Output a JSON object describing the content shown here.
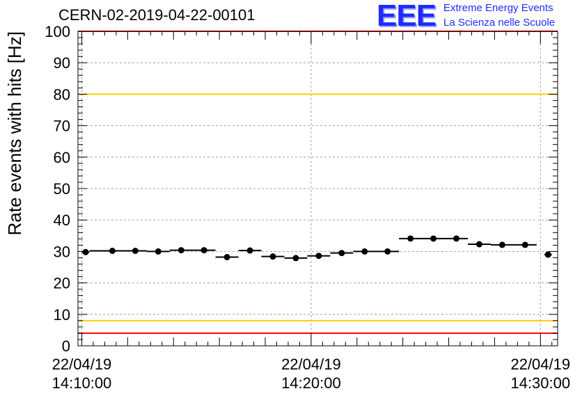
{
  "header": {
    "run_id": "CERN-02-2019-04-22-00101",
    "logo": {
      "mark": "EEE",
      "line1": "Extreme Energy Events",
      "line2": "La Scienza nelle Scuole"
    }
  },
  "chart_data": {
    "type": "scatter",
    "ylabel": "Rate events with hits [Hz]",
    "ylim": [
      0,
      100
    ],
    "yticks": [
      0,
      10,
      20,
      30,
      40,
      50,
      60,
      70,
      80,
      90,
      100
    ],
    "xlim": [
      "2019-04-22 14:09:50",
      "2019-04-22 14:30:45"
    ],
    "xticks": [
      {
        "time": "2019-04-22 14:10:00",
        "date_label": "22/04/19",
        "time_label": "14:10:00"
      },
      {
        "time": "2019-04-22 14:20:00",
        "date_label": "22/04/19",
        "time_label": "14:20:00"
      },
      {
        "time": "2019-04-22 14:30:00",
        "date_label": "22/04/19",
        "time_label": "14:30:00"
      }
    ],
    "grid": true,
    "reference_lines": [
      {
        "y": 100,
        "color": "#ff0000"
      },
      {
        "y": 80,
        "color": "#ffcc00"
      },
      {
        "y": 8,
        "color": "#ffcc00"
      },
      {
        "y": 4,
        "color": "#ff0000"
      }
    ],
    "marker_color": "#000000",
    "points": [
      {
        "x": "2019-04-22 14:10:10",
        "y": 29.8,
        "xerr_s": 10
      },
      {
        "x": "2019-04-22 14:11:20",
        "y": 30.2,
        "xerr_s": 60
      },
      {
        "x": "2019-04-22 14:12:20",
        "y": 30.2,
        "xerr_s": 30
      },
      {
        "x": "2019-04-22 14:13:20",
        "y": 30.0,
        "xerr_s": 30
      },
      {
        "x": "2019-04-22 14:14:20",
        "y": 30.4,
        "xerr_s": 30
      },
      {
        "x": "2019-04-22 14:15:20",
        "y": 30.4,
        "xerr_s": 30
      },
      {
        "x": "2019-04-22 14:16:20",
        "y": 28.2,
        "xerr_s": 30
      },
      {
        "x": "2019-04-22 14:17:20",
        "y": 30.3,
        "xerr_s": 30
      },
      {
        "x": "2019-04-22 14:18:20",
        "y": 28.4,
        "xerr_s": 30
      },
      {
        "x": "2019-04-22 14:19:20",
        "y": 27.9,
        "xerr_s": 30
      },
      {
        "x": "2019-04-22 14:20:20",
        "y": 28.6,
        "xerr_s": 30
      },
      {
        "x": "2019-04-22 14:21:20",
        "y": 29.5,
        "xerr_s": 30
      },
      {
        "x": "2019-04-22 14:22:20",
        "y": 30.0,
        "xerr_s": 30
      },
      {
        "x": "2019-04-22 14:23:20",
        "y": 30.0,
        "xerr_s": 30
      },
      {
        "x": "2019-04-22 14:24:20",
        "y": 34.1,
        "xerr_s": 30
      },
      {
        "x": "2019-04-22 14:25:20",
        "y": 34.1,
        "xerr_s": 30
      },
      {
        "x": "2019-04-22 14:26:20",
        "y": 34.1,
        "xerr_s": 30
      },
      {
        "x": "2019-04-22 14:27:20",
        "y": 32.3,
        "xerr_s": 30
      },
      {
        "x": "2019-04-22 14:28:20",
        "y": 32.1,
        "xerr_s": 30
      },
      {
        "x": "2019-04-22 14:29:20",
        "y": 32.1,
        "xerr_s": 30
      },
      {
        "x": "2019-04-22 14:30:20",
        "y": 29.0,
        "xerr_s": 10
      }
    ]
  }
}
